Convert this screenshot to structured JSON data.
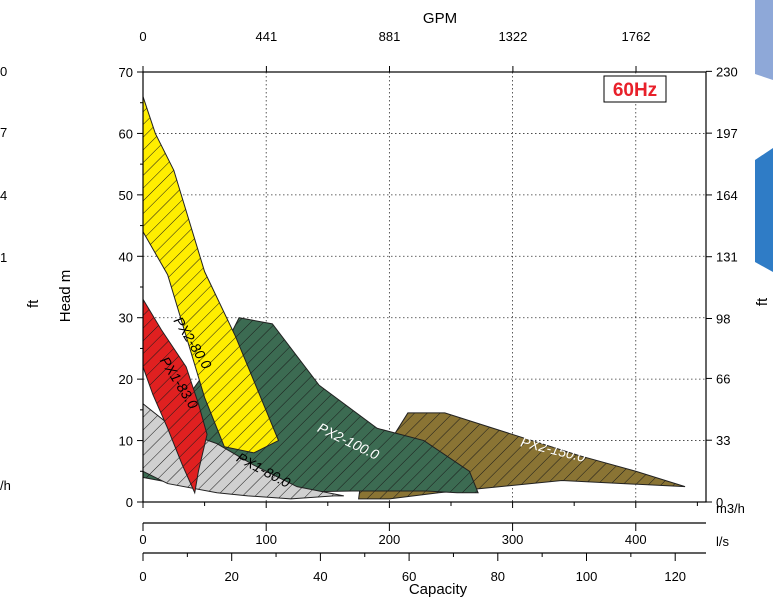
{
  "chart_data": {
    "type": "area",
    "frequency_badge": "60Hz",
    "xlabel": "Capacity",
    "ylabel_left": "Head m",
    "ylabel_right": "ft",
    "left_edge_labels": [
      "0",
      "7",
      "4",
      "1",
      "ft",
      "/h"
    ],
    "axes": {
      "top_gpm": {
        "title": "GPM",
        "ticks": [
          "0",
          "441",
          "881",
          "1322",
          "1762"
        ],
        "values": [
          0,
          441,
          881,
          1322,
          1762
        ]
      },
      "bottom_m3h": {
        "unit": "m3/h",
        "ticks": [
          "0",
          "100",
          "200",
          "300",
          "400"
        ],
        "values": [
          0,
          100,
          200,
          300,
          400
        ],
        "xlim": [
          0,
          457
        ]
      },
      "bottom_ls": {
        "unit": "l/s",
        "ticks": [
          "0",
          "20",
          "40",
          "60",
          "80",
          "100",
          "120"
        ],
        "values": [
          0,
          20,
          40,
          60,
          80,
          100,
          120
        ]
      },
      "left_m": {
        "ticks": [
          "0",
          "10",
          "20",
          "30",
          "40",
          "50",
          "60",
          "70"
        ],
        "values": [
          0,
          10,
          20,
          30,
          40,
          50,
          60,
          70
        ],
        "ylim": [
          0,
          70
        ]
      },
      "right_ft": {
        "ticks": [
          "0",
          "33",
          "66",
          "98",
          "131",
          "164",
          "197",
          "230"
        ],
        "values": [
          0,
          33,
          66,
          98,
          131,
          164,
          197,
          230
        ]
      }
    },
    "grid": true,
    "series": [
      {
        "name": "PX2-150.0",
        "color": "#8a7434",
        "label_x": 332,
        "label_y": 7.8,
        "label_rotation": 14,
        "label_color": "#ffffff",
        "points": [
          [
            176,
            2
          ],
          [
            215,
            14.5
          ],
          [
            245,
            14.5
          ],
          [
            300,
            11
          ],
          [
            355,
            7.5
          ],
          [
            400,
            5
          ],
          [
            440,
            2.5
          ],
          [
            390,
            3
          ],
          [
            340,
            3.5
          ],
          [
            290,
            2.5
          ],
          [
            240,
            1.5
          ],
          [
            200,
            0.5
          ],
          [
            175,
            0.5
          ]
        ]
      },
      {
        "name": "PX2-100.0",
        "color": "#3c6b52",
        "label_x": 165,
        "label_y": 9.2,
        "label_rotation": 26,
        "label_color": "#ffffff",
        "points": [
          [
            0,
            7
          ],
          [
            68,
            26
          ],
          [
            78,
            30
          ],
          [
            105,
            29
          ],
          [
            143,
            19
          ],
          [
            190,
            12
          ],
          [
            228,
            10
          ],
          [
            265,
            5
          ],
          [
            272,
            1.5
          ],
          [
            255,
            1.5
          ],
          [
            230,
            1.8
          ],
          [
            190,
            1.8
          ],
          [
            170,
            1.8
          ],
          [
            90,
            1.5
          ],
          [
            40,
            2.5
          ],
          [
            0,
            4
          ]
        ]
      },
      {
        "name": "PX1-80.0",
        "color": "#d0d0d0",
        "label_x": 96,
        "label_y": 4.5,
        "label_rotation": 28,
        "label_color": "#000000",
        "points": [
          [
            0,
            16
          ],
          [
            25,
            12
          ],
          [
            60,
            9.5
          ],
          [
            90,
            6
          ],
          [
            125,
            2.5
          ],
          [
            163,
            1
          ],
          [
            155,
            1
          ],
          [
            120,
            0.5
          ],
          [
            85,
            1
          ],
          [
            60,
            1.5
          ],
          [
            20,
            3
          ],
          [
            0,
            5
          ]
        ]
      },
      {
        "name": "PX2-80.0",
        "color": "#ffee00",
        "label_x": 37,
        "label_y": 25.5,
        "label_rotation": 58,
        "label_color": "#000000",
        "points": [
          [
            0,
            66
          ],
          [
            10,
            60
          ],
          [
            25,
            54
          ],
          [
            50,
            37.5
          ],
          [
            75,
            27
          ],
          [
            110,
            10
          ],
          [
            90,
            8
          ],
          [
            66,
            9
          ],
          [
            50,
            17
          ],
          [
            35,
            27
          ],
          [
            20,
            37
          ],
          [
            0,
            44
          ]
        ]
      },
      {
        "name": "PX1-83.0",
        "color": "#e02020",
        "label_x": 26,
        "label_y": 19,
        "label_rotation": 58,
        "label_color": "#000000",
        "points": [
          [
            0,
            33
          ],
          [
            15,
            28
          ],
          [
            35,
            22
          ],
          [
            45,
            16
          ],
          [
            52,
            11
          ],
          [
            45,
            5
          ],
          [
            42,
            1.5
          ],
          [
            32,
            6
          ],
          [
            20,
            12
          ],
          [
            8,
            17.5
          ],
          [
            0,
            22
          ]
        ]
      }
    ]
  }
}
